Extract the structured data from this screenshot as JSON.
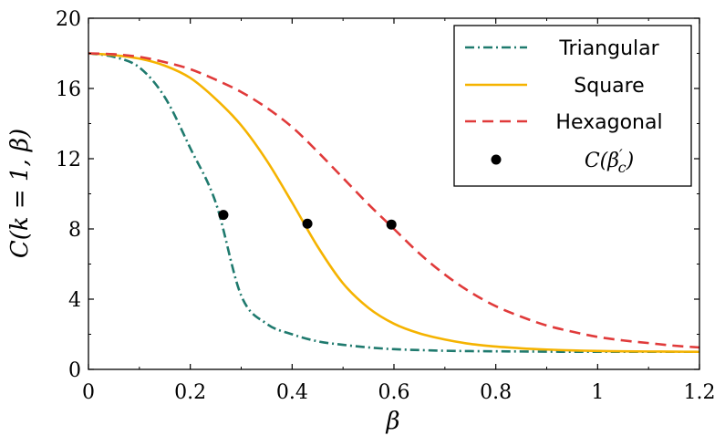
{
  "chart_data": {
    "type": "line",
    "xlabel": "β",
    "ylabel": "C(k = 1, β)",
    "xlim": [
      0,
      1.2
    ],
    "ylim": [
      0,
      20
    ],
    "xticks": [
      0,
      0.2,
      0.4,
      0.6,
      0.8,
      1,
      1.2
    ],
    "xtick_labels": [
      "0",
      "0.2",
      "0.4",
      "0.6",
      "0.8",
      "1",
      "1.2"
    ],
    "yticks": [
      0,
      4,
      8,
      12,
      16,
      20
    ],
    "ytick_labels": [
      "0",
      "4",
      "8",
      "12",
      "16",
      "20"
    ],
    "grid": false,
    "legend_position": "top-right",
    "x": [
      0,
      0.05,
      0.1,
      0.15,
      0.2,
      0.25,
      0.3,
      0.35,
      0.4,
      0.45,
      0.5,
      0.55,
      0.6,
      0.65,
      0.7,
      0.75,
      0.8,
      0.85,
      0.9,
      0.95,
      1.0,
      1.05,
      1.1,
      1.15,
      1.2
    ],
    "series": [
      {
        "name": "Triangular",
        "color": "#1f7a6e",
        "dash": "dash-dot",
        "values": [
          18,
          17.8,
          17.2,
          15.5,
          12.6,
          9.5,
          4.2,
          2.6,
          2.0,
          1.6,
          1.4,
          1.25,
          1.15,
          1.1,
          1.06,
          1.04,
          1.03,
          1.02,
          1.01,
          1.0,
          1.0,
          1.0,
          1.0,
          1.0,
          1.0
        ]
      },
      {
        "name": "Square",
        "color": "#f5b300",
        "dash": "solid",
        "values": [
          18,
          17.9,
          17.7,
          17.3,
          16.6,
          15.4,
          13.9,
          11.9,
          9.5,
          7.0,
          4.9,
          3.5,
          2.6,
          2.05,
          1.7,
          1.45,
          1.3,
          1.2,
          1.13,
          1.08,
          1.05,
          1.03,
          1.02,
          1.01,
          1.0
        ]
      },
      {
        "name": "Hexagonal",
        "color": "#e03a3a",
        "dash": "dashed",
        "values": [
          18,
          17.95,
          17.8,
          17.5,
          17.1,
          16.5,
          15.8,
          14.9,
          13.8,
          12.4,
          10.9,
          9.4,
          8.0,
          6.6,
          5.4,
          4.4,
          3.6,
          3.0,
          2.5,
          2.15,
          1.85,
          1.65,
          1.5,
          1.35,
          1.25
        ]
      }
    ],
    "points": {
      "name": "C(β′c)",
      "color": "#000000",
      "x": [
        0.265,
        0.43,
        0.595
      ],
      "y": [
        8.8,
        8.3,
        8.25
      ]
    },
    "legend": {
      "entries": [
        "Triangular",
        "Square",
        "Hexagonal"
      ],
      "marker_label_parts": [
        "C(β",
        "′",
        "c",
        ")"
      ]
    }
  }
}
